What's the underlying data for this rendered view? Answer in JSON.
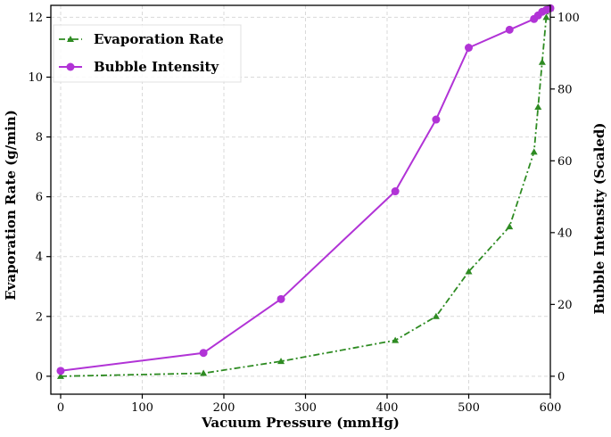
{
  "chart_data": {
    "type": "line",
    "xlabel": "Vacuum Pressure (mmHg)",
    "ylabel_left": "Evaporation Rate (g/min)",
    "ylabel_right": "Bubble Intensity (Scaled)",
    "xlim": [
      -12,
      600
    ],
    "ylim_left": [
      -0.6,
      12.4
    ],
    "ylim_right": [
      -5,
      103.3
    ],
    "x_ticks": [
      0,
      100,
      200,
      300,
      400,
      500,
      600
    ],
    "y_left_ticks": [
      0,
      2,
      4,
      6,
      8,
      10,
      12
    ],
    "y_right_ticks": [
      0,
      20,
      40,
      60,
      80,
      100
    ],
    "grid": true,
    "legend_position": "top-left",
    "series": [
      {
        "name": "Evaporation Rate",
        "axis": "left",
        "color": "#2e8b22",
        "marker": "triangle",
        "linestyle": "dash-dot",
        "x": [
          0,
          175,
          270,
          410,
          460,
          500,
          550,
          580,
          585,
          590,
          595,
          600
        ],
        "values": [
          0.0,
          0.1,
          0.5,
          1.2,
          2.0,
          3.5,
          5.0,
          7.5,
          9.0,
          10.5,
          12.0,
          12.3
        ]
      },
      {
        "name": "Bubble Intensity",
        "axis": "right",
        "color": "#b133d6",
        "marker": "circle",
        "linestyle": "solid",
        "x": [
          0,
          175,
          270,
          410,
          460,
          500,
          550,
          580,
          585,
          590,
          595,
          600
        ],
        "values": [
          1.5,
          6.5,
          21.5,
          51.5,
          71.5,
          91.5,
          96.5,
          99.5,
          100.5,
          101.5,
          102.0,
          102.5
        ]
      }
    ]
  }
}
